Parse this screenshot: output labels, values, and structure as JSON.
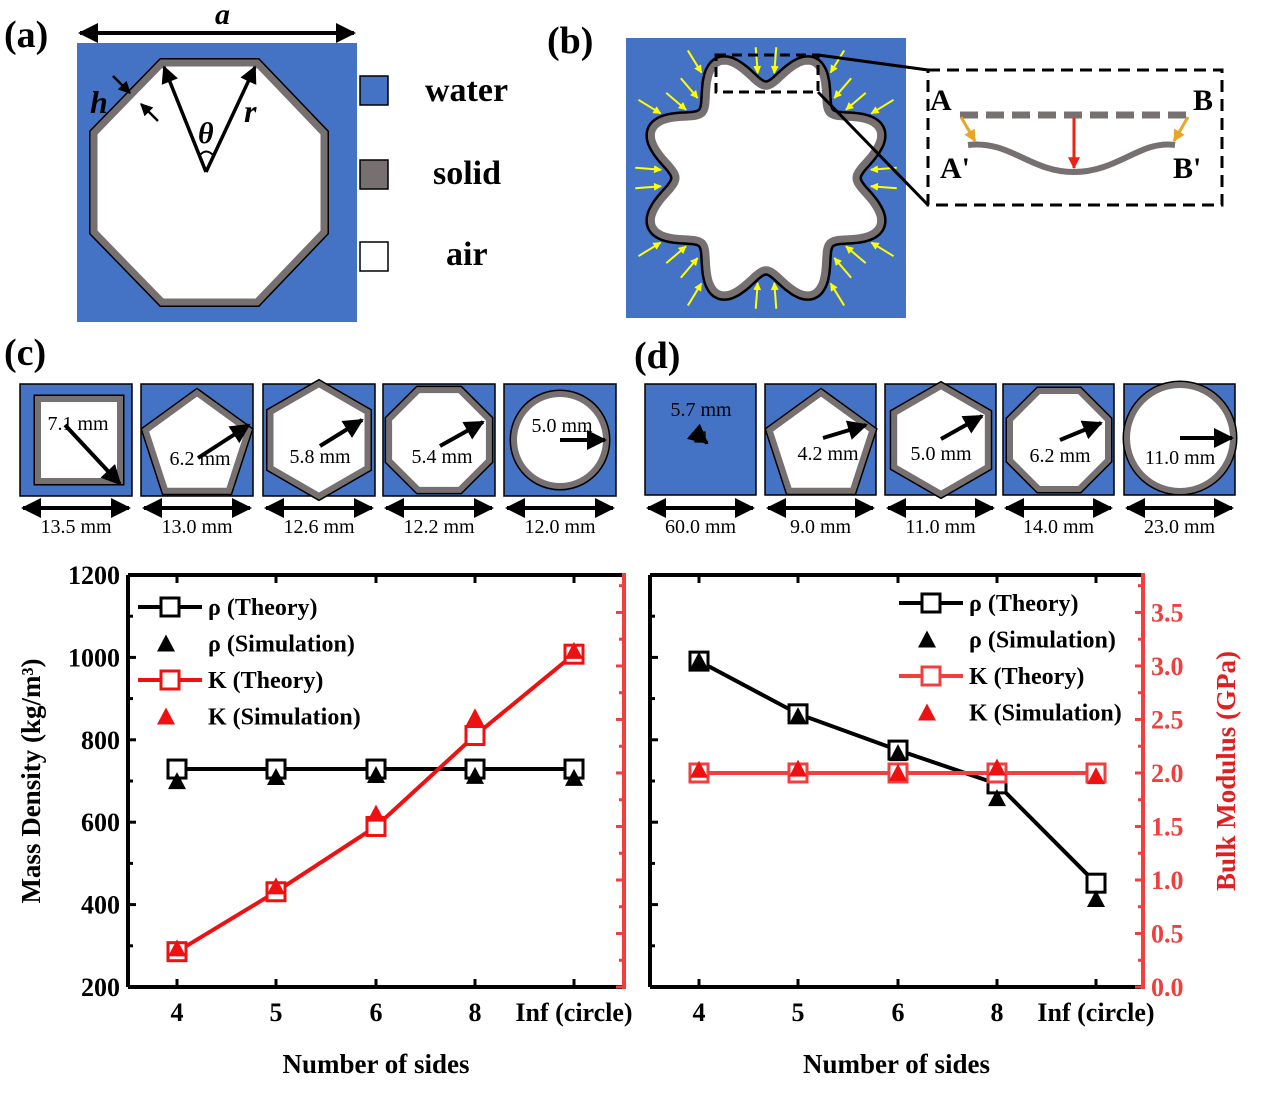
{
  "panels": {
    "a": {
      "label": "(a)",
      "symbols": {
        "width": "a",
        "thickness": "h",
        "radius": "r",
        "angle": "θ"
      },
      "legend": [
        {
          "label": "water",
          "color": "#4472c4"
        },
        {
          "label": "solid",
          "color": "#777070"
        },
        {
          "label": "air",
          "color": "#ffffff"
        }
      ]
    },
    "b": {
      "label": "(b)",
      "points": {
        "A": "A",
        "B": "B",
        "A_prime": "A'",
        "B_prime": "B'"
      }
    },
    "c": {
      "label": "(c)",
      "cells": [
        {
          "shape": "square",
          "radius": "7.1 mm",
          "width": "13.5 mm"
        },
        {
          "shape": "pentagon",
          "radius": "6.2 mm",
          "width": "13.0 mm"
        },
        {
          "shape": "hexagon",
          "radius": "5.8 mm",
          "width": "12.6 mm"
        },
        {
          "shape": "octagon",
          "radius": "5.4 mm",
          "width": "12.2 mm"
        },
        {
          "shape": "circle",
          "radius": "5.0 mm",
          "width": "12.0 mm"
        }
      ]
    },
    "d": {
      "label": "(d)",
      "cells": [
        {
          "shape": "square",
          "radius": "5.7 mm",
          "width": "60.0 mm"
        },
        {
          "shape": "pentagon",
          "radius": "4.2 mm",
          "width": "9.0 mm"
        },
        {
          "shape": "hexagon",
          "radius": "5.0 mm",
          "width": "11.0 mm"
        },
        {
          "shape": "octagon",
          "radius": "6.2 mm",
          "width": "14.0 mm"
        },
        {
          "shape": "circle",
          "radius": "11.0 mm",
          "width": "23.0 mm"
        }
      ]
    }
  },
  "colors": {
    "water": "#4472c4",
    "solid": "#777070",
    "rho": "#000000",
    "K": "#ee1111",
    "K_axis_right": "#ef3f3f",
    "pressure_arrows": "#ffff00"
  },
  "chart_data": [
    {
      "type": "line",
      "categories": [
        "4",
        "5",
        "6",
        "8",
        "Inf (circle)"
      ],
      "xlabel": "Number of sides",
      "ylabel": "Mass Density (kg/m³)",
      "ylim": [
        200,
        1200
      ],
      "yticks": [
        "200",
        "400",
        "600",
        "800",
        "1000",
        "1200"
      ],
      "ylim_right": [
        0,
        3.85
      ],
      "legend_position": "top-left",
      "series": [
        {
          "name": "ρ (Theory)",
          "axis": "left",
          "marker": "open-square",
          "line": true,
          "color": "#000000",
          "values": [
            729,
            729,
            729,
            729,
            729
          ]
        },
        {
          "name": "ρ (Simulation)",
          "axis": "left",
          "marker": "filled-triangle",
          "line": false,
          "color": "#000000",
          "values": [
            702,
            712,
            717,
            715,
            710
          ]
        },
        {
          "name": "K (Theory)",
          "axis": "right",
          "marker": "open-square",
          "line": true,
          "color": "#ee1111",
          "values": [
            0.33,
            0.89,
            1.5,
            2.35,
            3.11
          ]
        },
        {
          "name": "K (Simulation)",
          "axis": "right",
          "marker": "filled-triangle",
          "line": false,
          "color": "#ee1111",
          "values": [
            0.37,
            0.95,
            1.63,
            2.53,
            3.15
          ]
        }
      ]
    },
    {
      "type": "line",
      "categories": [
        "4",
        "5",
        "6",
        "8",
        "Inf (circle)"
      ],
      "xlabel": "Number of sides",
      "ylabel_right": "Bulk Modulus (GPa)",
      "ylim": [
        200,
        1200
      ],
      "ylim_right": [
        0,
        3.85
      ],
      "yticks_right": [
        "0.0",
        "0.5",
        "1.0",
        "1.5",
        "2.0",
        "2.5",
        "3.0",
        "3.5"
      ],
      "legend_position": "top-right",
      "series": [
        {
          "name": "ρ (Theory)",
          "axis": "left",
          "marker": "open-square",
          "line": true,
          "color": "#000000",
          "values": [
            991,
            863,
            775,
            693,
            452
          ]
        },
        {
          "name": "ρ (Simulation)",
          "axis": "left",
          "marker": "filled-triangle",
          "line": false,
          "color": "#000000",
          "values": [
            994,
            860,
            770,
            661,
            416
          ]
        },
        {
          "name": "K (Theory)",
          "axis": "right",
          "marker": "open-square",
          "line": true,
          "color": "#ef3f3f",
          "values": [
            2.0,
            2.0,
            2.0,
            2.0,
            2.0
          ]
        },
        {
          "name": "K (Simulation)",
          "axis": "right",
          "marker": "filled-triangle",
          "line": false,
          "color": "#ee1111",
          "values": [
            2.04,
            2.05,
            2.01,
            2.06,
            1.98
          ]
        }
      ]
    }
  ]
}
